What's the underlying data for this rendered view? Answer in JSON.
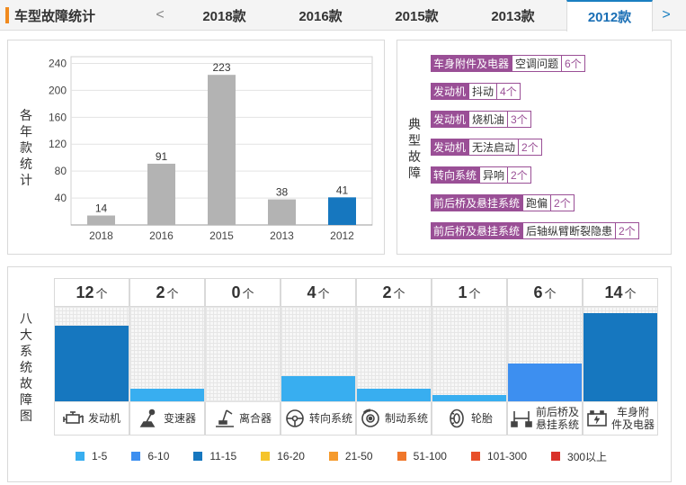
{
  "header": {
    "title": "车型故障统计",
    "prev_arrow": "<",
    "next_arrow": ">",
    "tabs": [
      {
        "label": "2018款",
        "active": false
      },
      {
        "label": "2016款",
        "active": false
      },
      {
        "label": "2015款",
        "active": false
      },
      {
        "label": "2013款",
        "active": false
      },
      {
        "label": "2012款",
        "active": true
      }
    ]
  },
  "yearly_chart": {
    "side_label": "各年款统计"
  },
  "chart_data": {
    "type": "bar",
    "categories": [
      "2018",
      "2016",
      "2015",
      "2013",
      "2012"
    ],
    "values": [
      14,
      91,
      223,
      38,
      41
    ],
    "ylim": [
      0,
      250
    ],
    "yticks": [
      40,
      80,
      120,
      160,
      200,
      240
    ],
    "grid": true,
    "bar_colors": [
      "#b3b3b3",
      "#b3b3b3",
      "#b3b3b3",
      "#b3b3b3",
      "#1677bf"
    ]
  },
  "typical_faults": {
    "side_label": "典型故障",
    "items": [
      {
        "category": "车身附件及电器",
        "problem": "空调问题",
        "count": "6个"
      },
      {
        "category": "发动机",
        "problem": "抖动",
        "count": "4个"
      },
      {
        "category": "发动机",
        "problem": "烧机油",
        "count": "3个"
      },
      {
        "category": "发动机",
        "problem": "无法启动",
        "count": "2个"
      },
      {
        "category": "转向系统",
        "problem": "异响",
        "count": "2个"
      },
      {
        "category": "前后桥及悬挂系统",
        "problem": "跑偏",
        "count": "2个"
      },
      {
        "category": "前后桥及悬挂系统",
        "problem": "后轴纵臂断裂隐患",
        "count": "2个"
      }
    ]
  },
  "eight_systems": {
    "side_label": "八大系统故障图",
    "unit": "个",
    "level_max": 15,
    "systems": [
      {
        "name": "发动机",
        "count": "12",
        "level": 12,
        "color": "#1677bf",
        "icon": "engine-icon"
      },
      {
        "name": "变速器",
        "count": "2",
        "level": 2,
        "color": "#38aef0",
        "icon": "gear-shift-icon"
      },
      {
        "name": "离合器",
        "count": "0",
        "level": 0,
        "color": "#38aef0",
        "icon": "clutch-pedal-icon"
      },
      {
        "name": "转向系统",
        "count": "4",
        "level": 4,
        "color": "#38aef0",
        "icon": "steering-wheel-icon"
      },
      {
        "name": "制动系统",
        "count": "2",
        "level": 2,
        "color": "#38aef0",
        "icon": "brake-disc-icon"
      },
      {
        "name": "轮胎",
        "count": "1",
        "level": 1,
        "color": "#38aef0",
        "icon": "tire-icon"
      },
      {
        "name": "前后桥及悬挂系统",
        "count": "6",
        "level": 6,
        "color": "#3d8ff0",
        "icon": "suspension-icon"
      },
      {
        "name": "车身附件及电器",
        "count": "14",
        "level": 14,
        "color": "#1677bf",
        "icon": "battery-icon"
      }
    ],
    "legend": [
      {
        "label": "1-5",
        "color": "#38aef0"
      },
      {
        "label": "6-10",
        "color": "#3d8ff0"
      },
      {
        "label": "11-15",
        "color": "#1677bf"
      },
      {
        "label": "16-20",
        "color": "#f5c42c"
      },
      {
        "label": "21-50",
        "color": "#f59a2c"
      },
      {
        "label": "51-100",
        "color": "#f0772a"
      },
      {
        "label": "101-300",
        "color": "#e8502a"
      },
      {
        "label": "300以上",
        "color": "#d9322a"
      }
    ]
  }
}
